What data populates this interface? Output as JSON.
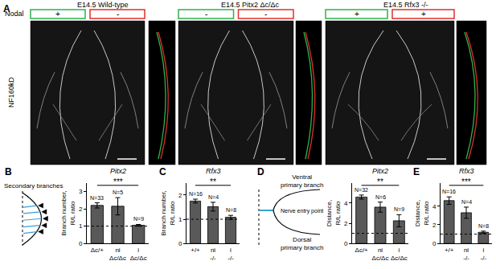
{
  "panel_a": {
    "label": "A",
    "row_label": "Nodal",
    "stain": "NF160kD",
    "columns": [
      {
        "title": "E14.5 Wild-type",
        "nodal": [
          "+",
          "-"
        ]
      },
      {
        "title": "E14.5 Pitx2 Δc/Δc",
        "nodal": [
          "-",
          "-"
        ]
      },
      {
        "title": "E14.5 Rfx3 -/-",
        "nodal": [
          "+",
          "+"
        ]
      }
    ]
  },
  "schematics": {
    "B": {
      "labels": [
        "Secondary branches"
      ]
    },
    "D": {
      "labels": [
        "Ventral primary branch",
        "Nerve entry point",
        "Dorsal primary branch"
      ]
    }
  },
  "chart_data": [
    {
      "panel": "B",
      "type": "bar",
      "title": "Pitx2",
      "y_label": "Branch number, R/L ratio",
      "categories": [
        "Δc/+",
        "ni Δc/Δc",
        "i Δc/Δc"
      ],
      "values": [
        2.2,
        2.15,
        1.05
      ],
      "errors": [
        0.15,
        0.5,
        0.05
      ],
      "n_labels": [
        "N=33",
        "N=5",
        "N=9"
      ],
      "significance": "***",
      "reference": 1,
      "ylim": [
        0,
        3.5
      ],
      "yticks": [
        0,
        1,
        2,
        3
      ],
      "color": "#595959",
      "grid": false
    },
    {
      "panel": "C",
      "type": "bar",
      "title": "Rfx3",
      "y_label": "Branch number, R/L ratio",
      "categories": [
        "+/+",
        "ni -/-",
        "i -/-"
      ],
      "values": [
        1.75,
        1.52,
        1.08
      ],
      "errors": [
        0.08,
        0.18,
        0.08
      ],
      "n_labels": [
        "N=16",
        "N=4",
        "N=8"
      ],
      "significance": "**",
      "reference": 1,
      "ylim": [
        0,
        2.5
      ],
      "yticks": [
        0,
        1,
        2
      ],
      "color": "#595959",
      "grid": false
    },
    {
      "panel": "D",
      "type": "bar",
      "title": "Pitx2",
      "y_label": "Distance, R/L ratio",
      "categories": [
        "Δc/+",
        "ni Δc/Δc",
        "i Δc/Δc"
      ],
      "values": [
        4.6,
        3.6,
        2.25
      ],
      "errors": [
        0.2,
        0.5,
        0.6
      ],
      "n_labels": [
        "N=32",
        "N=6",
        "N=9"
      ],
      "significance": "**",
      "reference": 1,
      "ylim": [
        0,
        6
      ],
      "yticks": [
        0,
        2,
        4
      ],
      "color": "#595959",
      "grid": false
    },
    {
      "panel": "E",
      "type": "bar",
      "title": "Rfx3",
      "y_label": "Distance, R/L ratio",
      "categories": [
        "+/+",
        "ni -/-",
        "i -/-"
      ],
      "values": [
        4.6,
        3.3,
        1.2
      ],
      "errors": [
        0.4,
        0.6,
        0.12
      ],
      "n_labels": [
        "N=16",
        "N=4",
        "N=8"
      ],
      "significance": "***",
      "reference": 1,
      "ylim": [
        0,
        6.5
      ],
      "yticks": [
        0,
        2,
        4
      ],
      "color": "#595959",
      "grid": false
    }
  ]
}
